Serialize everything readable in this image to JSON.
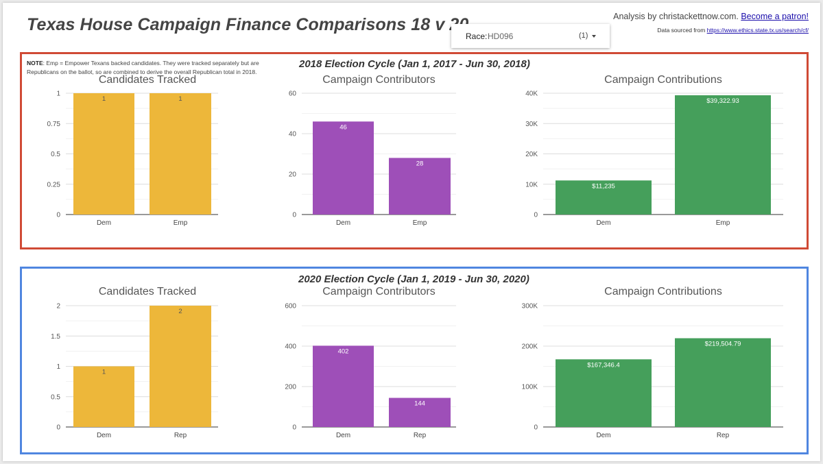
{
  "title": "Texas House Campaign Finance Comparisons 18 v 20",
  "race_filter": {
    "label": "Race:",
    "value": "HD096",
    "count": "(1)",
    "icon": "caret-down-icon"
  },
  "credit": {
    "text": "Analysis by christackettnow.com.",
    "link": "Become a patron!"
  },
  "source": {
    "text": "Data sourced from",
    "link": "https://www.ethics.state.tx.us/search/cf/"
  },
  "note": {
    "bold": "NOTE",
    "text": ": Emp = Empower Texans backed candidates. They were tracked separately but are Republicans on the ballot, so are combined to derive the overall Republican total in 2018."
  },
  "cycles": [
    {
      "title": "2018 Election Cycle (Jan 1, 2017 - Jun 30, 2018)",
      "color": "#d04a35"
    },
    {
      "title": "2020 Election Cycle (Jan 1, 2019 - Jun 30, 2020)",
      "color": "#4f86e0"
    }
  ],
  "colors": {
    "candidates": "#edb73a",
    "contributors": "#9e4fb8",
    "contributions": "#459f5b"
  },
  "chart_data": [
    {
      "type": "bar",
      "title": "Candidates Tracked",
      "cycle": "2018",
      "categories": [
        "Dem",
        "Emp"
      ],
      "values": [
        1,
        1
      ],
      "value_labels": [
        "1",
        "1"
      ],
      "ylim": [
        0,
        1
      ],
      "ticks": [
        0,
        0.25,
        0.5,
        0.75,
        1
      ],
      "tick_labels": [
        "0",
        "0.25",
        "0.5",
        "0.75",
        "1"
      ],
      "color": "#edb73a",
      "label_color": "#555555"
    },
    {
      "type": "bar",
      "title": "Campaign Contributors",
      "cycle": "2018",
      "categories": [
        "Dem",
        "Emp"
      ],
      "values": [
        46,
        28
      ],
      "value_labels": [
        "46",
        "28"
      ],
      "ylim": [
        0,
        60
      ],
      "ticks": [
        0,
        20,
        40,
        60
      ],
      "tick_labels": [
        "0",
        "20",
        "40",
        "60"
      ],
      "color": "#9e4fb8",
      "label_color": "#ffffff"
    },
    {
      "type": "bar",
      "title": "Campaign Contributions",
      "cycle": "2018",
      "categories": [
        "Dem",
        "Emp"
      ],
      "values": [
        11235,
        39322.93
      ],
      "value_labels": [
        "$11,235",
        "$39,322.93"
      ],
      "ylim": [
        0,
        40000
      ],
      "ticks": [
        0,
        10000,
        20000,
        30000,
        40000
      ],
      "tick_labels": [
        "0",
        "10K",
        "20K",
        "30K",
        "40K"
      ],
      "color": "#459f5b",
      "label_color": "#ffffff"
    },
    {
      "type": "bar",
      "title": "Candidates Tracked",
      "cycle": "2020",
      "categories": [
        "Dem",
        "Rep"
      ],
      "values": [
        1,
        2
      ],
      "value_labels": [
        "1",
        "2"
      ],
      "ylim": [
        0,
        2
      ],
      "ticks": [
        0,
        0.5,
        1,
        1.5,
        2
      ],
      "tick_labels": [
        "0",
        "0.5",
        "1",
        "1.5",
        "2"
      ],
      "color": "#edb73a",
      "label_color": "#555555"
    },
    {
      "type": "bar",
      "title": "Campaign Contributors",
      "cycle": "2020",
      "categories": [
        "Dem",
        "Rep"
      ],
      "values": [
        402,
        144
      ],
      "value_labels": [
        "402",
        "144"
      ],
      "ylim": [
        0,
        600
      ],
      "ticks": [
        0,
        200,
        400,
        600
      ],
      "tick_labels": [
        "0",
        "200",
        "400",
        "600"
      ],
      "color": "#9e4fb8",
      "label_color": "#ffffff"
    },
    {
      "type": "bar",
      "title": "Campaign Contributions",
      "cycle": "2020",
      "categories": [
        "Dem",
        "Rep"
      ],
      "values": [
        167346.4,
        219504.79
      ],
      "value_labels": [
        "$167,346.4",
        "$219,504.79"
      ],
      "ylim": [
        0,
        300000
      ],
      "ticks": [
        0,
        100000,
        200000,
        300000
      ],
      "tick_labels": [
        "0",
        "100K",
        "200K",
        "300K"
      ],
      "color": "#459f5b",
      "label_color": "#ffffff"
    }
  ]
}
